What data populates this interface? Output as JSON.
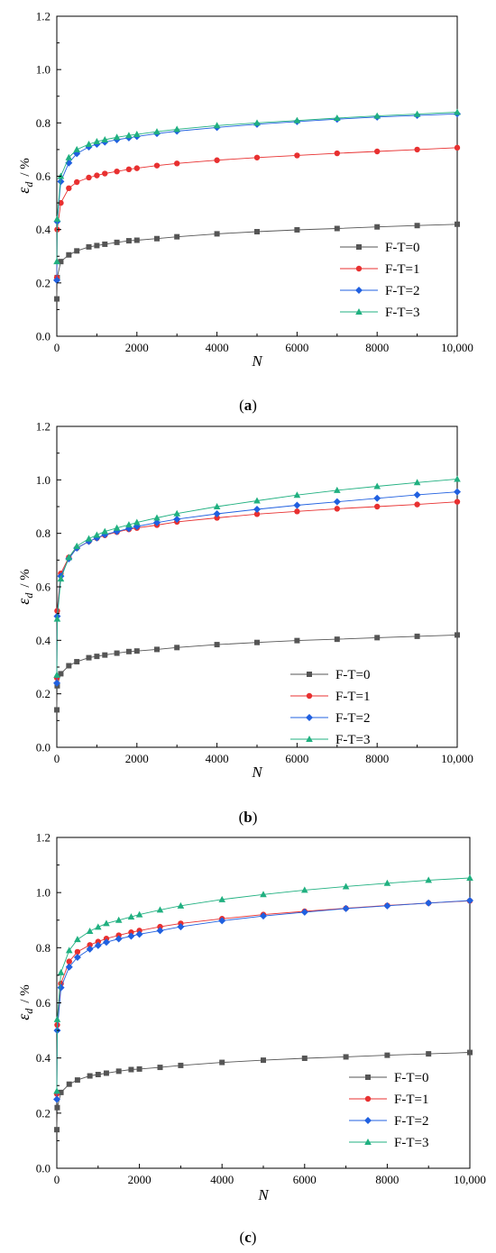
{
  "chart_data": [
    {
      "type": "line",
      "panel_label": "a",
      "xlabel": "N",
      "ylabel": "ε",
      "ylabel_subscript": "d",
      "ylabel_unit": "%",
      "xlim": [
        0,
        10000
      ],
      "ylim": [
        0.0,
        1.2
      ],
      "xticks": [
        "0",
        "2000",
        "4000",
        "6000",
        "8000",
        "10,000"
      ],
      "yticks": [
        "0.0",
        "0.2",
        "0.4",
        "0.6",
        "0.8",
        "1.0",
        "1.2"
      ],
      "legend_position": "lower-right",
      "series": [
        {
          "name": "F-T=0",
          "color": "#555555",
          "marker": "square",
          "x": [
            1,
            10,
            100,
            300,
            500,
            800,
            1000,
            1200,
            1500,
            1800,
            2000,
            2500,
            3000,
            4000,
            5000,
            6000,
            7000,
            8000,
            9000,
            10000
          ],
          "y": [
            0.14,
            0.22,
            0.28,
            0.305,
            0.32,
            0.335,
            0.34,
            0.345,
            0.352,
            0.358,
            0.36,
            0.366,
            0.373,
            0.384,
            0.392,
            0.399,
            0.404,
            0.41,
            0.415,
            0.42
          ]
        },
        {
          "name": "F-T=1",
          "color": "#e83030",
          "marker": "circle",
          "x": [
            1,
            10,
            100,
            300,
            500,
            800,
            1000,
            1200,
            1500,
            1800,
            2000,
            2500,
            3000,
            4000,
            5000,
            6000,
            7000,
            8000,
            9000,
            10000
          ],
          "y": [
            0.22,
            0.4,
            0.5,
            0.555,
            0.578,
            0.595,
            0.603,
            0.61,
            0.618,
            0.626,
            0.63,
            0.64,
            0.648,
            0.66,
            0.67,
            0.678,
            0.686,
            0.693,
            0.7,
            0.707
          ]
        },
        {
          "name": "F-T=2",
          "color": "#2060e0",
          "marker": "diamond",
          "x": [
            1,
            10,
            100,
            300,
            500,
            800,
            1000,
            1200,
            1500,
            1800,
            2000,
            2500,
            3000,
            4000,
            5000,
            6000,
            7000,
            8000,
            9000,
            10000
          ],
          "y": [
            0.21,
            0.43,
            0.58,
            0.65,
            0.685,
            0.71,
            0.72,
            0.728,
            0.737,
            0.744,
            0.749,
            0.76,
            0.769,
            0.783,
            0.795,
            0.805,
            0.814,
            0.822,
            0.828,
            0.834
          ]
        },
        {
          "name": "F-T=3",
          "color": "#20b080",
          "marker": "triangle",
          "x": [
            1,
            10,
            100,
            300,
            500,
            800,
            1000,
            1200,
            1500,
            1800,
            2000,
            2500,
            3000,
            4000,
            5000,
            6000,
            7000,
            8000,
            9000,
            10000
          ],
          "y": [
            0.28,
            0.44,
            0.6,
            0.67,
            0.7,
            0.72,
            0.73,
            0.737,
            0.746,
            0.753,
            0.757,
            0.767,
            0.776,
            0.79,
            0.8,
            0.809,
            0.818,
            0.826,
            0.833,
            0.84
          ]
        }
      ]
    },
    {
      "type": "line",
      "panel_label": "b",
      "xlabel": "N",
      "ylabel": "ε",
      "ylabel_subscript": "d",
      "ylabel_unit": "%",
      "xlim": [
        0,
        10000
      ],
      "ylim": [
        0.0,
        1.2
      ],
      "xticks": [
        "0",
        "2000",
        "4000",
        "6000",
        "8000",
        "10,000"
      ],
      "yticks": [
        "0.0",
        "0.2",
        "0.4",
        "0.6",
        "0.8",
        "1.0",
        "1.2"
      ],
      "legend_position": "lower-right",
      "series": [
        {
          "name": "F-T=0",
          "color": "#555555",
          "marker": "square",
          "x": [
            1,
            10,
            100,
            300,
            500,
            800,
            1000,
            1200,
            1500,
            1800,
            2000,
            2500,
            3000,
            4000,
            5000,
            6000,
            7000,
            8000,
            9000,
            10000
          ],
          "y": [
            0.14,
            0.23,
            0.275,
            0.305,
            0.32,
            0.335,
            0.34,
            0.345,
            0.352,
            0.358,
            0.36,
            0.366,
            0.373,
            0.384,
            0.392,
            0.399,
            0.404,
            0.41,
            0.415,
            0.42
          ]
        },
        {
          "name": "F-T=1",
          "color": "#e83030",
          "marker": "circle",
          "x": [
            1,
            10,
            100,
            300,
            500,
            800,
            1000,
            1200,
            1500,
            1800,
            2000,
            2500,
            3000,
            4000,
            5000,
            6000,
            7000,
            8000,
            9000,
            10000
          ],
          "y": [
            0.26,
            0.51,
            0.65,
            0.71,
            0.745,
            0.77,
            0.782,
            0.793,
            0.805,
            0.815,
            0.82,
            0.831,
            0.843,
            0.858,
            0.872,
            0.882,
            0.892,
            0.9,
            0.908,
            0.918
          ]
        },
        {
          "name": "F-T=2",
          "color": "#2060e0",
          "marker": "diamond",
          "x": [
            1,
            10,
            100,
            300,
            500,
            800,
            1000,
            1200,
            1500,
            1800,
            2000,
            2500,
            3000,
            4000,
            5000,
            6000,
            7000,
            8000,
            9000,
            10000
          ],
          "y": [
            0.24,
            0.49,
            0.64,
            0.705,
            0.745,
            0.77,
            0.783,
            0.795,
            0.807,
            0.818,
            0.826,
            0.84,
            0.853,
            0.873,
            0.89,
            0.905,
            0.918,
            0.931,
            0.944,
            0.955
          ]
        },
        {
          "name": "F-T=3",
          "color": "#20b080",
          "marker": "triangle",
          "x": [
            1,
            10,
            100,
            300,
            500,
            800,
            1000,
            1200,
            1500,
            1800,
            2000,
            2500,
            3000,
            4000,
            5000,
            6000,
            7000,
            8000,
            9000,
            10000
          ],
          "y": [
            0.27,
            0.48,
            0.63,
            0.71,
            0.752,
            0.78,
            0.794,
            0.807,
            0.82,
            0.832,
            0.841,
            0.858,
            0.874,
            0.9,
            0.922,
            0.943,
            0.961,
            0.976,
            0.99,
            1.003
          ]
        }
      ]
    },
    {
      "type": "line",
      "panel_label": "c",
      "xlabel": "N",
      "ylabel": "ε",
      "ylabel_subscript": "d",
      "ylabel_unit": "%",
      "xlim": [
        0,
        10000
      ],
      "ylim": [
        0.0,
        1.2
      ],
      "xticks": [
        "0",
        "2000",
        "4000",
        "6000",
        "8000",
        "10,000"
      ],
      "yticks": [
        "0.0",
        "0.2",
        "0.4",
        "0.6",
        "0.8",
        "1.0",
        "1.2"
      ],
      "legend_position": "lower-right",
      "series": [
        {
          "name": "F-T=0",
          "color": "#555555",
          "marker": "square",
          "x": [
            1,
            10,
            100,
            300,
            500,
            800,
            1000,
            1200,
            1500,
            1800,
            2000,
            2500,
            3000,
            4000,
            5000,
            6000,
            7000,
            8000,
            9000,
            10000
          ],
          "y": [
            0.14,
            0.22,
            0.275,
            0.305,
            0.32,
            0.335,
            0.34,
            0.345,
            0.352,
            0.358,
            0.36,
            0.366,
            0.373,
            0.384,
            0.392,
            0.399,
            0.404,
            0.41,
            0.415,
            0.42
          ]
        },
        {
          "name": "F-T=1",
          "color": "#e83030",
          "marker": "circle",
          "x": [
            1,
            10,
            100,
            300,
            500,
            800,
            1000,
            1200,
            1500,
            1800,
            2000,
            2500,
            3000,
            4000,
            5000,
            6000,
            7000,
            8000,
            9000,
            10000
          ],
          "y": [
            0.27,
            0.52,
            0.67,
            0.75,
            0.785,
            0.81,
            0.822,
            0.833,
            0.845,
            0.856,
            0.862,
            0.876,
            0.888,
            0.905,
            0.92,
            0.932,
            0.943,
            0.953,
            0.962,
            0.97
          ]
        },
        {
          "name": "F-T=2",
          "color": "#2060e0",
          "marker": "diamond",
          "x": [
            1,
            10,
            100,
            300,
            500,
            800,
            1000,
            1200,
            1500,
            1800,
            2000,
            2500,
            3000,
            4000,
            5000,
            6000,
            7000,
            8000,
            9000,
            10000
          ],
          "y": [
            0.25,
            0.5,
            0.655,
            0.73,
            0.765,
            0.795,
            0.808,
            0.82,
            0.832,
            0.842,
            0.849,
            0.862,
            0.876,
            0.898,
            0.915,
            0.929,
            0.942,
            0.952,
            0.962,
            0.971
          ]
        },
        {
          "name": "F-T=3",
          "color": "#20b080",
          "marker": "triangle",
          "x": [
            1,
            10,
            100,
            300,
            500,
            800,
            1000,
            1200,
            1500,
            1800,
            2000,
            2500,
            3000,
            4000,
            5000,
            6000,
            7000,
            8000,
            9000,
            10000
          ],
          "y": [
            0.28,
            0.54,
            0.71,
            0.79,
            0.83,
            0.86,
            0.875,
            0.888,
            0.9,
            0.912,
            0.92,
            0.937,
            0.952,
            0.975,
            0.993,
            1.009,
            1.022,
            1.034,
            1.045,
            1.053
          ]
        }
      ]
    }
  ]
}
